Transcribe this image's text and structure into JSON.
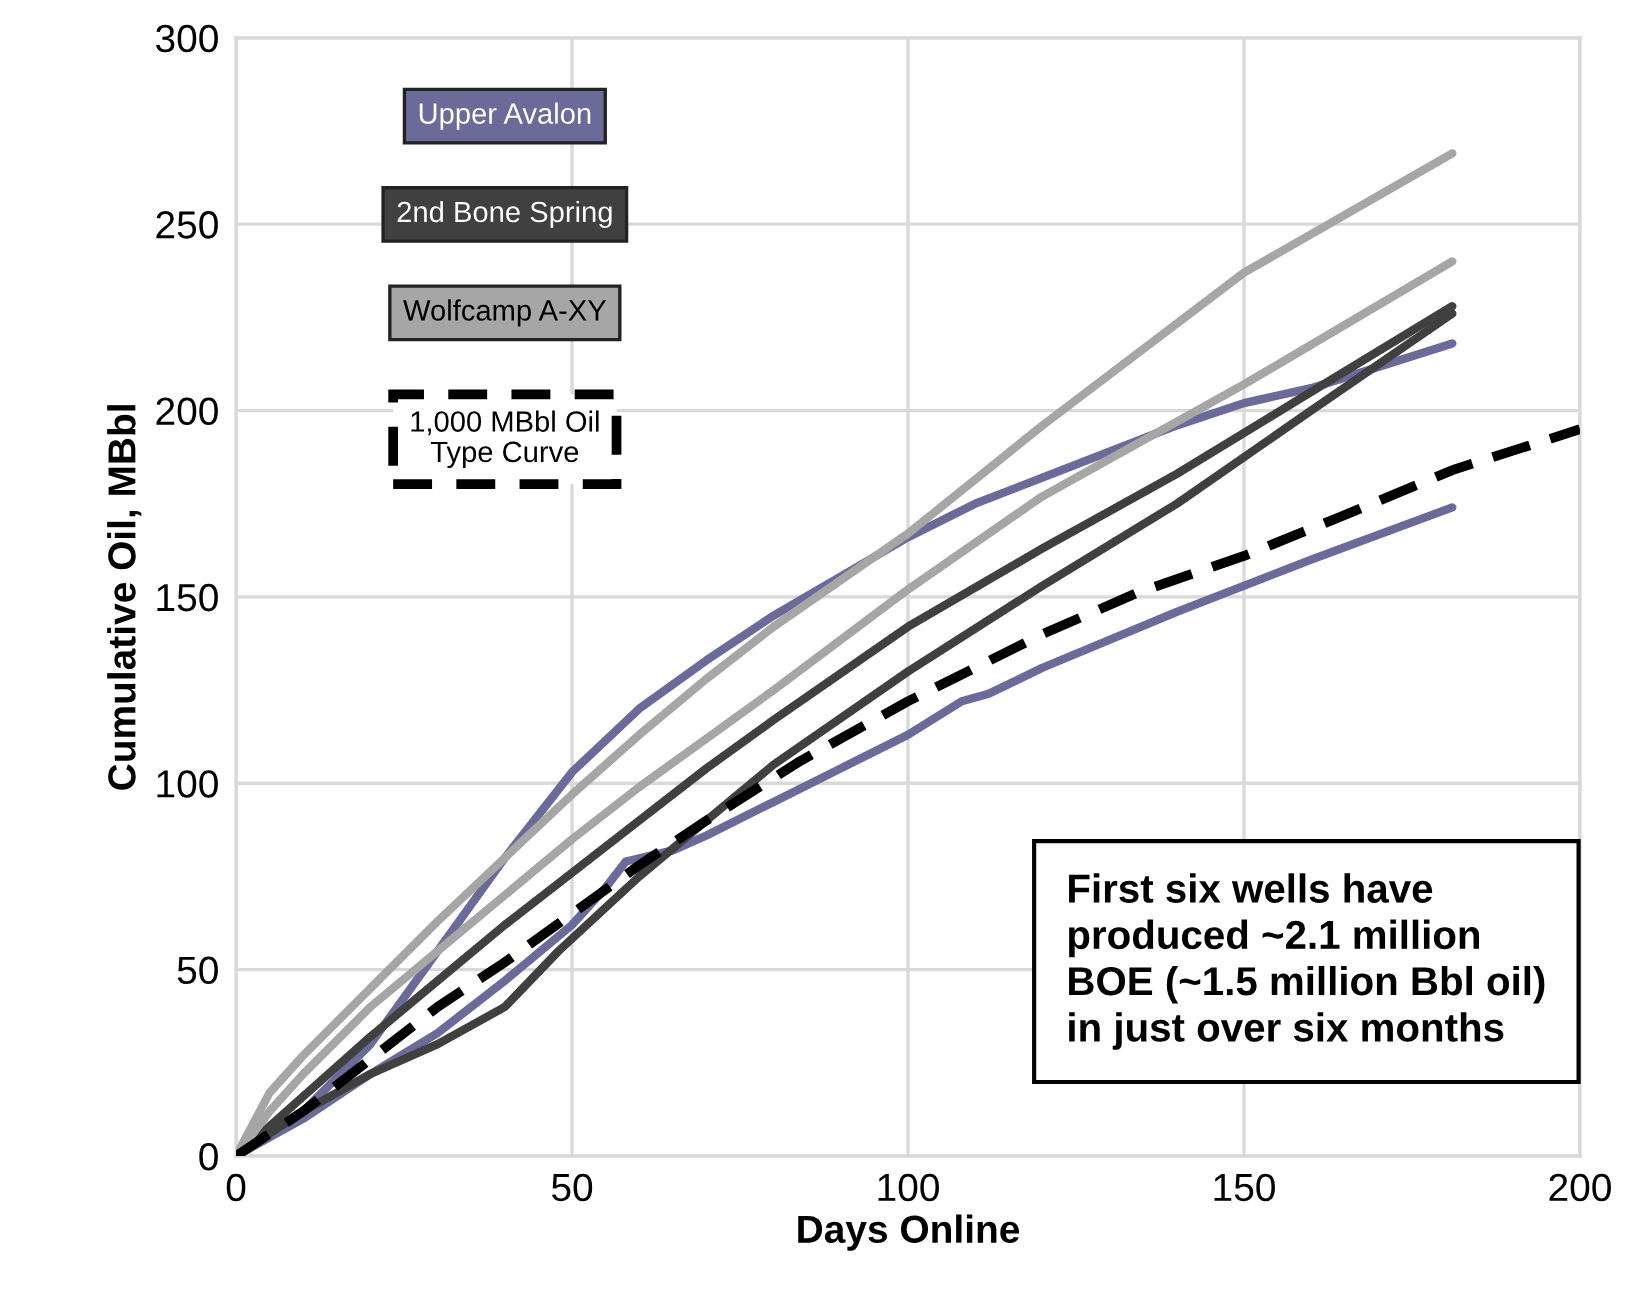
{
  "chart_data": {
    "type": "line",
    "xlabel": "Days Online",
    "ylabel": "Cumulative Oil, MBbl",
    "xlim": [
      0,
      200
    ],
    "xticks": [
      0,
      50,
      100,
      150,
      200
    ],
    "ylim": [
      0,
      300
    ],
    "yticks": [
      0,
      50,
      100,
      150,
      200,
      250,
      300
    ],
    "grid": true,
    "legend": "top left",
    "line_style": "solid",
    "marker": "none",
    "series": [
      {
        "name": "Upper Avalon",
        "color": "#6b6b9a",
        "x": [
          0,
          10,
          20,
          30,
          40,
          50,
          60,
          70,
          80,
          100,
          110,
          120,
          140,
          150,
          160,
          181
        ],
        "values": [
          0,
          12,
          30,
          55,
          80,
          103,
          120,
          133,
          145,
          166,
          175,
          182,
          196,
          202,
          206,
          218
        ]
      },
      {
        "color": "#6b6b9a",
        "x": [
          0,
          10,
          20,
          30,
          40,
          50,
          55,
          58,
          65,
          70,
          80,
          90,
          100,
          108,
          112,
          120,
          140,
          160,
          181
        ],
        "values": [
          0,
          10,
          22,
          33,
          47,
          62,
          72,
          79,
          82,
          86,
          95,
          104,
          113,
          122,
          124,
          131,
          146,
          160,
          174
        ]
      },
      {
        "name": "2nd Bone Spring",
        "color": "#404040",
        "x": [
          0,
          10,
          20,
          30,
          40,
          50,
          60,
          70,
          80,
          100,
          120,
          140,
          160,
          181
        ],
        "values": [
          0,
          16,
          32,
          47,
          62,
          76,
          90,
          104,
          117,
          142,
          163,
          183,
          205,
          228
        ]
      },
      {
        "color": "#404040",
        "x": [
          0,
          10,
          20,
          30,
          40,
          48,
          60,
          70,
          80,
          100,
          120,
          140,
          160,
          181
        ],
        "values": [
          0,
          12,
          22,
          30,
          40,
          55,
          75,
          90,
          105,
          130,
          153,
          175,
          200,
          226
        ]
      },
      {
        "name": "Wolfcamp A-XY",
        "color": "#a6a6a6",
        "x": [
          0,
          5,
          10,
          20,
          30,
          40,
          50,
          60,
          70,
          80,
          100,
          120,
          150,
          181
        ],
        "values": [
          0,
          17,
          27,
          45,
          63,
          80,
          97,
          113,
          128,
          142,
          167,
          196,
          237,
          269
        ]
      },
      {
        "color": "#a6a6a6",
        "x": [
          0,
          5,
          10,
          20,
          30,
          40,
          50,
          60,
          70,
          80,
          100,
          120,
          150,
          181
        ],
        "values": [
          0,
          12,
          22,
          40,
          55,
          70,
          85,
          99,
          112,
          125,
          152,
          177,
          207,
          240
        ]
      },
      {
        "name": "1,000 MBbl Oil\nType Curve",
        "color": "#000000",
        "line_style": "dashed",
        "x": [
          0,
          10,
          20,
          30,
          40,
          50,
          60,
          70,
          84,
          100,
          120,
          134,
          150,
          165,
          181,
          200
        ],
        "values": [
          0,
          12,
          26,
          40,
          52,
          65,
          78,
          90,
          106,
          122,
          140,
          151,
          161,
          172,
          184,
          195
        ]
      }
    ],
    "annotations": [
      "First six wells have\nproduced ~2.1 million\nBOE (~1.5 million Bbl oil)\nin just over six months"
    ]
  }
}
